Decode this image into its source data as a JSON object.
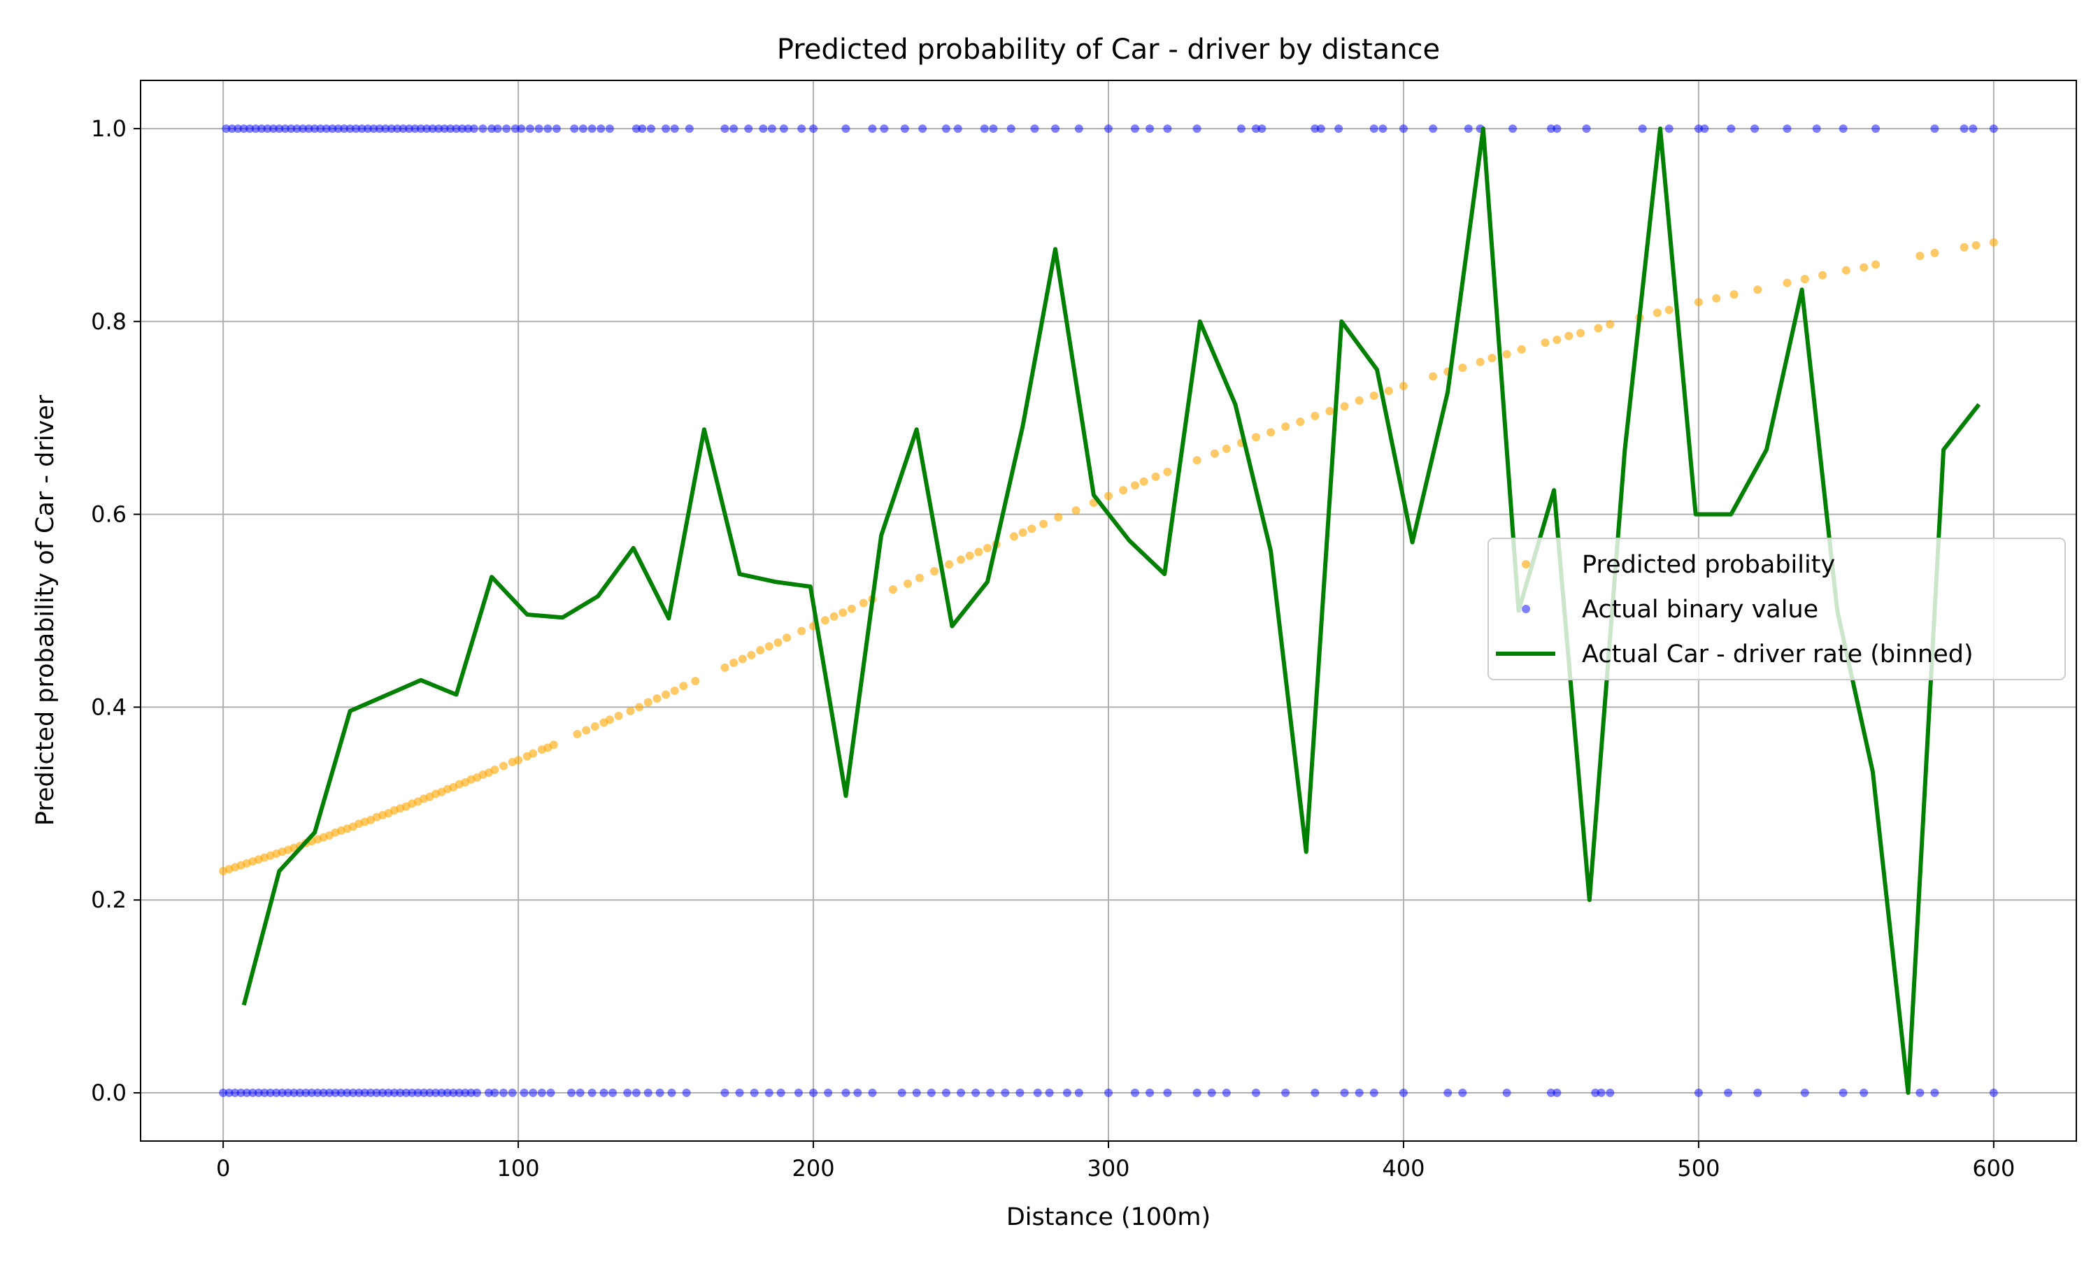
{
  "chart_data": {
    "type": "scatter",
    "title": "Predicted probability of Car - driver by distance",
    "xlabel": "Distance (100m)",
    "ylabel": "Predicted probability of Car - driver",
    "xlim": [
      -28,
      628
    ],
    "ylim": [
      -0.05,
      1.05
    ],
    "x_ticks": [
      0,
      100,
      200,
      300,
      400,
      500,
      600
    ],
    "y_ticks": [
      0.0,
      0.2,
      0.4,
      0.6,
      0.8,
      1.0
    ],
    "x_tick_labels": [
      "0",
      "100",
      "200",
      "300",
      "400",
      "500",
      "600"
    ],
    "y_tick_labels": [
      "0.0",
      "0.2",
      "0.4",
      "0.6",
      "0.8",
      "1.0"
    ],
    "grid": true,
    "legend_position": "center-right",
    "colors": {
      "predicted": "#FFA500",
      "actual": "#0000FF",
      "binned": "#008000",
      "grid": "#b0b0b0"
    },
    "series": [
      {
        "name": "Predicted probability",
        "type": "scatter",
        "logistic": {
          "intercept": -1.2073,
          "slope": 0.005448
        },
        "x": [
          0,
          2,
          4,
          6,
          8,
          10,
          12,
          14,
          16,
          18,
          20,
          22,
          24,
          26,
          28,
          30,
          32,
          34,
          36,
          38,
          40,
          42,
          44,
          46,
          48,
          50,
          52,
          54,
          56,
          58,
          60,
          62,
          64,
          66,
          68,
          70,
          72,
          74,
          76,
          78,
          80,
          82,
          84,
          86,
          88,
          90,
          92,
          95,
          98,
          100,
          103,
          105,
          108,
          110,
          112,
          120,
          123,
          126,
          129,
          131,
          134,
          138,
          141,
          144,
          147,
          150,
          153,
          156,
          160,
          170,
          173,
          176,
          179,
          182,
          185,
          188,
          191,
          196,
          200,
          204,
          207,
          210,
          213,
          217,
          220,
          227,
          232,
          236,
          241,
          246,
          250,
          253,
          256,
          259,
          262,
          268,
          271,
          274,
          278,
          283,
          289,
          295,
          300,
          305,
          309,
          312,
          316,
          320,
          330,
          336,
          340,
          345,
          350,
          355,
          360,
          365,
          370,
          375,
          380,
          385,
          390,
          395,
          400,
          410,
          415,
          420,
          426,
          430,
          435,
          440,
          448,
          452,
          456,
          460,
          466,
          470,
          480,
          486,
          490,
          500,
          506,
          512,
          520,
          530,
          536,
          542,
          550,
          556,
          560,
          575,
          580,
          590,
          594,
          600
        ],
        "y": [
          0.23,
          0.232,
          0.234,
          0.236,
          0.238,
          0.24,
          0.242,
          0.244,
          0.246,
          0.248,
          0.25,
          0.252,
          0.254,
          0.256,
          0.259,
          0.261,
          0.263,
          0.265,
          0.267,
          0.27,
          0.272,
          0.274,
          0.276,
          0.279,
          0.281,
          0.283,
          0.286,
          0.288,
          0.29,
          0.293,
          0.295,
          0.297,
          0.3,
          0.302,
          0.305,
          0.307,
          0.31,
          0.312,
          0.315,
          0.317,
          0.32,
          0.322,
          0.325,
          0.327,
          0.33,
          0.332,
          0.335,
          0.339,
          0.343,
          0.345,
          0.349,
          0.352,
          0.356,
          0.358,
          0.361,
          0.372,
          0.376,
          0.38,
          0.384,
          0.387,
          0.391,
          0.396,
          0.4,
          0.405,
          0.409,
          0.413,
          0.417,
          0.422,
          0.427,
          0.441,
          0.446,
          0.45,
          0.454,
          0.459,
          0.463,
          0.467,
          0.472,
          0.479,
          0.484,
          0.49,
          0.494,
          0.498,
          0.502,
          0.508,
          0.512,
          0.522,
          0.528,
          0.534,
          0.541,
          0.548,
          0.553,
          0.557,
          0.561,
          0.565,
          0.569,
          0.577,
          0.581,
          0.585,
          0.59,
          0.597,
          0.604,
          0.612,
          0.619,
          0.625,
          0.63,
          0.634,
          0.639,
          0.644,
          0.656,
          0.663,
          0.668,
          0.674,
          0.68,
          0.685,
          0.691,
          0.696,
          0.702,
          0.707,
          0.712,
          0.718,
          0.723,
          0.728,
          0.733,
          0.743,
          0.748,
          0.752,
          0.758,
          0.762,
          0.766,
          0.771,
          0.778,
          0.781,
          0.785,
          0.788,
          0.793,
          0.797,
          0.804,
          0.809,
          0.812,
          0.82,
          0.824,
          0.828,
          0.833,
          0.84,
          0.844,
          0.848,
          0.853,
          0.856,
          0.859,
          0.868,
          0.871,
          0.877,
          0.879,
          0.882
        ]
      },
      {
        "name": "Actual binary value",
        "type": "scatter",
        "x_at_1": [
          1,
          3,
          5,
          7,
          9,
          11,
          13,
          15,
          17,
          19,
          21,
          23,
          25,
          27,
          29,
          31,
          33,
          35,
          37,
          39,
          41,
          43,
          45,
          47,
          49,
          51,
          53,
          55,
          57,
          59,
          61,
          63,
          65,
          67,
          69,
          71,
          73,
          75,
          77,
          79,
          81,
          83,
          85,
          88,
          91,
          93,
          96,
          99,
          101,
          104,
          107,
          110,
          113,
          119,
          122,
          125,
          128,
          131,
          140,
          142,
          145,
          150,
          153,
          158,
          170,
          173,
          178,
          183,
          186,
          190,
          196,
          200,
          211,
          220,
          224,
          231,
          237,
          245,
          249,
          258,
          261,
          267,
          275,
          282,
          290,
          300,
          309,
          314,
          320,
          330,
          345,
          350,
          352,
          370,
          372,
          378,
          390,
          393,
          400,
          410,
          422,
          426,
          437,
          450,
          452,
          462,
          481,
          490,
          500,
          502,
          511,
          519,
          530,
          540,
          549,
          560,
          580,
          590,
          593,
          600
        ],
        "x_at_0": [
          0,
          2,
          4,
          6,
          8,
          10,
          12,
          14,
          16,
          18,
          20,
          22,
          24,
          26,
          28,
          30,
          32,
          34,
          36,
          38,
          40,
          42,
          44,
          46,
          48,
          50,
          52,
          54,
          56,
          58,
          60,
          62,
          64,
          66,
          68,
          70,
          72,
          74,
          76,
          78,
          80,
          82,
          84,
          86,
          90,
          92,
          95,
          98,
          102,
          105,
          108,
          111,
          118,
          121,
          125,
          129,
          132,
          137,
          140,
          144,
          148,
          152,
          157,
          170,
          175,
          180,
          185,
          189,
          195,
          200,
          205,
          211,
          215,
          220,
          230,
          235,
          240,
          245,
          250,
          255,
          260,
          265,
          270,
          276,
          280,
          286,
          290,
          300,
          309,
          314,
          320,
          330,
          335,
          340,
          350,
          360,
          370,
          380,
          385,
          390,
          400,
          415,
          420,
          435,
          450,
          452,
          465,
          467,
          470,
          500,
          510,
          520,
          536,
          549,
          556,
          575,
          580,
          600
        ]
      },
      {
        "name": "Actual Car - driver rate (binned)",
        "type": "line",
        "x": [
          7,
          19,
          31,
          43,
          55,
          67,
          79,
          91,
          103,
          115,
          127,
          139,
          151,
          163,
          175,
          187,
          199,
          211,
          223,
          235,
          247,
          259,
          271,
          282,
          295,
          307,
          319,
          331,
          343,
          355,
          367,
          379,
          391,
          403,
          415,
          427,
          439,
          451,
          463,
          475,
          487,
          499,
          511,
          523,
          535,
          547,
          559,
          571,
          583,
          595
        ],
        "y": [
          0.091,
          0.23,
          0.27,
          0.396,
          0.412,
          0.428,
          0.413,
          0.535,
          0.496,
          0.493,
          0.515,
          0.565,
          0.492,
          0.688,
          0.538,
          0.53,
          0.525,
          0.308,
          0.578,
          0.688,
          0.484,
          0.53,
          0.692,
          0.875,
          0.62,
          0.573,
          0.538,
          0.8,
          0.714,
          0.562,
          0.25,
          0.8,
          0.75,
          0.571,
          0.727,
          1.0,
          0.5,
          0.625,
          0.2,
          0.667,
          1.0,
          0.6,
          0.6,
          0.667,
          0.833,
          0.5,
          0.333,
          0.0,
          0.667,
          0.714
        ]
      }
    ]
  }
}
